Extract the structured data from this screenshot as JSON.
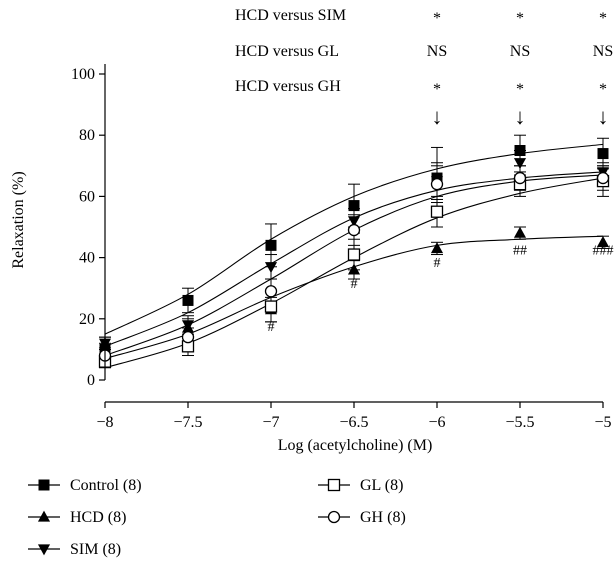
{
  "chart_data": {
    "type": "line",
    "title": "",
    "xlabel": "Log (acetylcholine) (M)",
    "ylabel": "Relaxation (%)",
    "xlim": [
      -8,
      -5
    ],
    "ylim": [
      0,
      100
    ],
    "x_ticks": [
      -8,
      -7.5,
      -7,
      -6.5,
      -6,
      -5.5,
      -5
    ],
    "x_tick_labels": [
      "−8",
      "−7.5",
      "−7",
      "−6.5",
      "−6",
      "−5.5",
      "−5"
    ],
    "y_ticks": [
      0,
      20,
      40,
      60,
      80,
      100
    ],
    "y_tick_labels": [
      "0",
      "20",
      "40",
      "60",
      "80",
      "100"
    ],
    "x": [
      -8,
      -7.5,
      -7,
      -6.5,
      -6,
      -5.5,
      -5
    ],
    "series": [
      {
        "name": "Control (8)",
        "marker": "filled-square",
        "values": [
          10,
          26,
          44,
          57,
          66,
          75,
          74
        ],
        "errors": [
          2,
          4,
          7,
          7,
          10,
          5,
          5
        ],
        "fit": [
          15,
          28,
          46,
          60,
          69,
          74,
          77
        ]
      },
      {
        "name": "HCD (8)",
        "marker": "filled-triangle-up",
        "values": [
          12,
          17,
          23,
          36,
          43,
          48,
          45
        ],
        "errors": [
          2,
          3,
          4,
          3,
          2,
          2,
          2
        ],
        "fit": [
          7,
          15,
          27,
          37,
          44,
          46,
          47
        ]
      },
      {
        "name": "SIM (8)",
        "marker": "filled-triangle-down",
        "values": [
          12,
          18,
          37,
          52,
          65,
          71,
          68
        ],
        "errors": [
          2,
          3,
          4,
          4,
          6,
          4,
          3
        ],
        "fit": [
          11,
          22,
          38,
          53,
          62,
          66,
          68
        ]
      },
      {
        "name": "GL (8)",
        "marker": "open-square",
        "values": [
          6,
          11,
          24,
          41,
          55,
          64,
          65
        ],
        "errors": [
          2,
          3,
          5,
          5,
          5,
          4,
          5
        ],
        "fit": [
          4,
          12,
          25,
          40,
          53,
          61,
          66
        ]
      },
      {
        "name": "GH (8)",
        "marker": "open-circle",
        "values": [
          8,
          14,
          29,
          49,
          64,
          66,
          66
        ],
        "errors": [
          2,
          3,
          4,
          5,
          6,
          4,
          4
        ],
        "fit": [
          8,
          18,
          33,
          49,
          60,
          65,
          67
        ]
      }
    ],
    "significance_marks": [
      {
        "x": -7,
        "y": 16,
        "text": "#"
      },
      {
        "x": -6.5,
        "y": 30,
        "text": "#"
      },
      {
        "x": -6,
        "y": 37,
        "text": "#"
      },
      {
        "x": -5.5,
        "y": 41,
        "text": "##"
      },
      {
        "x": -5,
        "y": 41,
        "text": "###"
      }
    ],
    "comparison_table": {
      "rows": [
        {
          "label": "HCD versus SIM",
          "marks": [
            "*",
            "*",
            "*"
          ]
        },
        {
          "label": "HCD versus GL",
          "marks": [
            "NS",
            "NS",
            "NS"
          ]
        },
        {
          "label": "HCD versus GH",
          "marks": [
            "*",
            "*",
            "*"
          ]
        }
      ],
      "x_positions": [
        -6,
        -5.5,
        -5
      ],
      "arrow_symbol": "↓"
    },
    "legend": {
      "placement": "bottom",
      "left_column": [
        "Control (8)",
        "HCD (8)",
        "SIM (8)"
      ],
      "right_column": [
        "GL (8)",
        "GH (8)"
      ]
    }
  }
}
